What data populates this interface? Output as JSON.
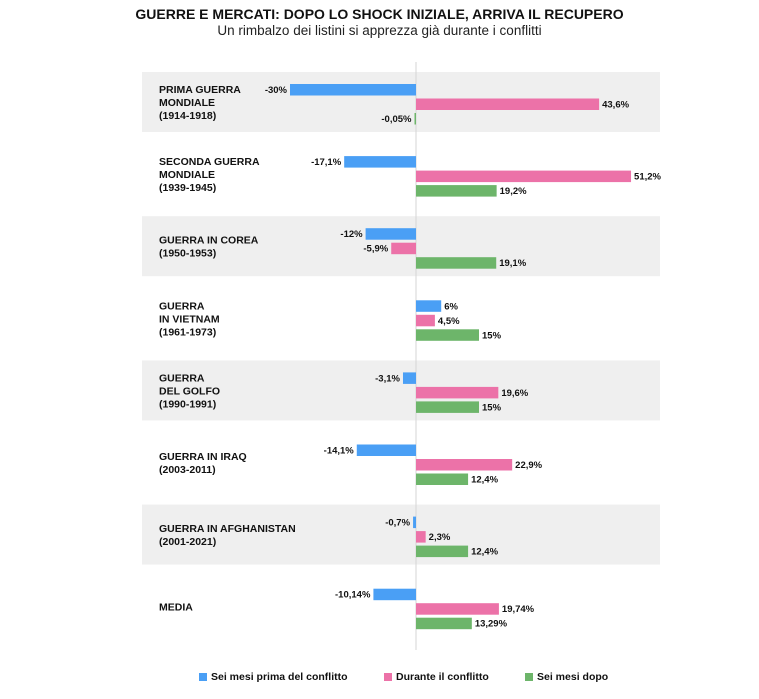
{
  "chart_data": {
    "type": "bar",
    "orientation": "horizontal",
    "title": "GUERRE E MERCATI: DOPO LO SHOCK INIZIALE, ARRIVA IL RECUPERO",
    "subtitle": "Un rimbalzo dei listini si apprezza già durante i conflitti",
    "categories": [
      [
        "PRIMA GUERRA",
        "MONDIALE",
        "(1914-1918)"
      ],
      [
        "SECONDA GUERRA",
        "MONDIALE",
        "(1939-1945)"
      ],
      [
        "GUERRA IN COREA",
        "(1950-1953)"
      ],
      [
        "GUERRA",
        "IN VIETNAM",
        "(1961-1973)"
      ],
      [
        "GUERRA",
        "DEL GOLFO",
        "(1990-1991)"
      ],
      [
        "GUERRA IN IRAQ",
        "(2003-2011)"
      ],
      [
        "GUERRA IN AFGHANISTAN",
        "(2001-2021)"
      ],
      [
        "MEDIA"
      ]
    ],
    "series": [
      {
        "name": "Sei mesi prima del conflitto",
        "color": "#4a9ff5",
        "values": [
          -30,
          -17.1,
          -12,
          6,
          -3.1,
          -14.1,
          -0.7,
          -10.14
        ],
        "labels": [
          "-30%",
          "-17,1%",
          "-12%",
          "6%",
          "-3,1%",
          "-14,1%",
          "-0,7%",
          "-10,14%"
        ]
      },
      {
        "name": "Durante il conflitto",
        "color": "#ec72a8",
        "values": [
          43.6,
          51.2,
          -5.9,
          4.5,
          19.6,
          22.9,
          2.3,
          19.74
        ],
        "labels": [
          "43,6%",
          "51,2%",
          "-5,9%",
          "4,5%",
          "19,6%",
          "22,9%",
          "2,3%",
          "19,74%"
        ]
      },
      {
        "name": "Sei mesi dopo",
        "color": "#6db56a",
        "values": [
          -0.05,
          19.2,
          19.1,
          15,
          15,
          12.4,
          12.4,
          13.29
        ],
        "labels": [
          "-0,05%",
          "19,2%",
          "19,1%",
          "15%",
          "15%",
          "12,4%",
          "12,4%",
          "13,29%"
        ]
      }
    ],
    "band_color": "#efefef",
    "alternating_bands": true,
    "legend_position": "bottom",
    "grid": false
  }
}
